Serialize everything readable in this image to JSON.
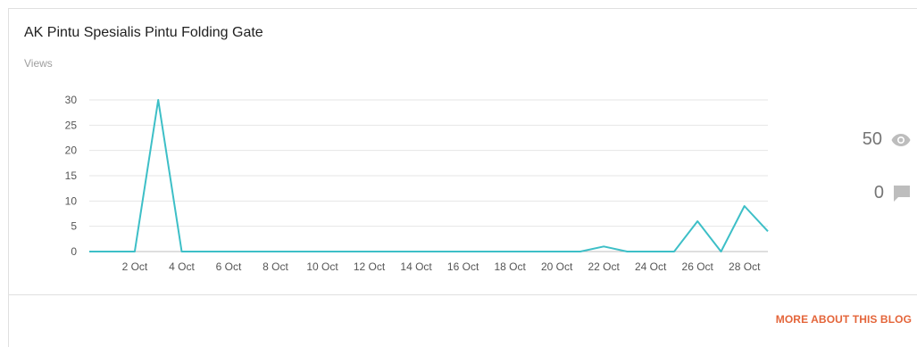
{
  "blog": {
    "title": "AK Pintu Spesialis Pintu Folding Gate",
    "metric_label": "Views",
    "views_total": "50",
    "comments_total": "0",
    "more_link": "MORE ABOUT THIS BLOG"
  },
  "icons": {
    "views": "eye-icon",
    "comments": "comment-icon"
  },
  "colors": {
    "line": "#3dbfc7",
    "accent": "#e4653a",
    "icon": "#bdbdbd"
  },
  "chart_data": {
    "type": "line",
    "x": [
      1,
      2,
      3,
      4,
      5,
      6,
      7,
      8,
      9,
      10,
      11,
      12,
      13,
      14,
      15,
      16,
      17,
      18,
      19,
      20,
      21,
      22,
      23,
      24,
      25,
      26,
      27,
      28,
      29
    ],
    "x_unit": "Oct",
    "values": [
      0,
      0,
      30,
      0,
      0,
      0,
      0,
      0,
      0,
      0,
      0,
      0,
      0,
      0,
      0,
      0,
      0,
      0,
      0,
      0,
      0,
      1,
      0,
      0,
      0,
      6,
      0,
      9,
      4
    ],
    "x_ticks": [
      "2 Oct",
      "4 Oct",
      "6 Oct",
      "8 Oct",
      "10 Oct",
      "12 Oct",
      "14 Oct",
      "16 Oct",
      "18 Oct",
      "20 Oct",
      "22 Oct",
      "24 Oct",
      "26 Oct",
      "28 Oct"
    ],
    "x_tick_values": [
      2,
      4,
      6,
      8,
      10,
      12,
      14,
      16,
      18,
      20,
      22,
      24,
      26,
      28
    ],
    "y_ticks": [
      "0",
      "5",
      "10",
      "15",
      "20",
      "25",
      "30"
    ],
    "y_tick_values": [
      0,
      5,
      10,
      15,
      20,
      25,
      30
    ],
    "ylim": [
      0,
      30
    ],
    "grid": true,
    "legend": "none"
  }
}
